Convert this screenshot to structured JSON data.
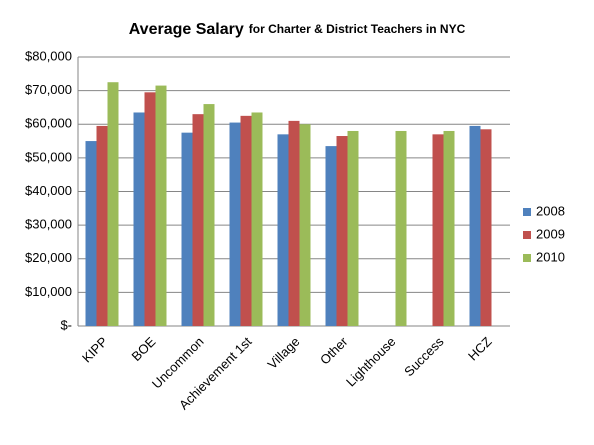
{
  "chart_data": {
    "type": "bar",
    "title": "Average Salary",
    "subtitle": "for Charter & District Teachers in NYC",
    "categories": [
      "KIPP",
      "BOE",
      "Uncommon",
      "Achievement 1st",
      "Village",
      "Other",
      "Lighthouse",
      "Success",
      "HCZ"
    ],
    "series": [
      {
        "name": "2008",
        "color": "#4f81bd",
        "values": [
          55000,
          63500,
          57500,
          60500,
          57000,
          53500,
          null,
          null,
          59500
        ]
      },
      {
        "name": "2009",
        "color": "#c0504d",
        "values": [
          59500,
          69500,
          63000,
          62500,
          61000,
          56500,
          null,
          57000,
          58500
        ]
      },
      {
        "name": "2010",
        "color": "#9bbb59",
        "values": [
          72500,
          71500,
          66000,
          63500,
          60000,
          58000,
          58000,
          58000,
          null
        ]
      }
    ],
    "ylim": [
      0,
      80000
    ],
    "yticks": [
      {
        "value": 0,
        "label": "$-"
      },
      {
        "value": 10000,
        "label": "$10,000"
      },
      {
        "value": 20000,
        "label": "$20,000"
      },
      {
        "value": 30000,
        "label": "$30,000"
      },
      {
        "value": 40000,
        "label": "$40,000"
      },
      {
        "value": 50000,
        "label": "$50,000"
      },
      {
        "value": 60000,
        "label": "$60,000"
      },
      {
        "value": 70000,
        "label": "$70,000"
      },
      {
        "value": 80000,
        "label": "$80,000"
      }
    ],
    "grid": true,
    "legend": "right"
  }
}
